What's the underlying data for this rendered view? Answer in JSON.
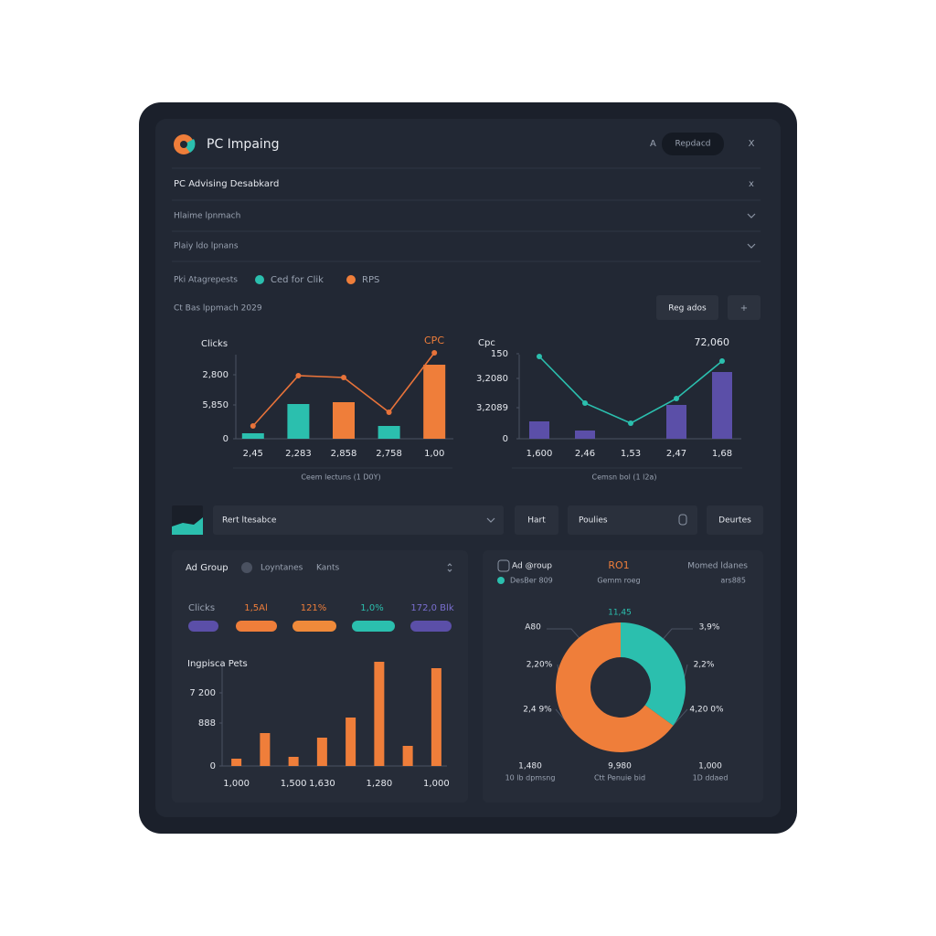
{
  "header": {
    "title": "PC Impaing",
    "user": "A",
    "button": "Repdacd",
    "close": "X"
  },
  "rows": [
    {
      "label": "PC Advising Desabkard",
      "icon": "x"
    },
    {
      "label": "Hlaime lpnmach"
    },
    {
      "label": "Plaiy ldo lpnans"
    }
  ],
  "filters": {
    "label": "Pki Atagrepests",
    "items": [
      "Ced for Clik",
      "RPS"
    ]
  },
  "range": "Ct  Bas lppmach 2029",
  "actions": [
    "Reg ados",
    "+"
  ],
  "toolbar": {
    "select": "Rert ltesabce",
    "buttons": [
      "Hart",
      "Poulies",
      "Deurtes"
    ]
  },
  "ad_group": {
    "title": "Ad Group",
    "tabs": [
      "Loyntanes",
      "Kants"
    ],
    "metric": "Clicks",
    "values": [
      "1,5Al",
      "121%",
      "1,0%",
      "172,0 Blk"
    ]
  },
  "chart_data": [
    {
      "type": "bar",
      "title": "Clicks",
      "annotation": "CPC",
      "x_label": "Ceem lectuns (1 D0Y)",
      "categories": [
        "2,45",
        "2,283",
        "2,858",
        "2,758",
        "1,00"
      ],
      "series": [
        {
          "type": "bar",
          "colors": [
            "#2bbfae",
            "#2bbfae",
            "#ef7e3a",
            "#2bbfae",
            "#ef7e3a"
          ],
          "values": [
            600,
            3800,
            4000,
            1400,
            8100
          ]
        },
        {
          "type": "line",
          "color": "#e8733a",
          "values": [
            1400,
            6900,
            6700,
            2900,
            9400
          ]
        }
      ],
      "ylim": [
        0,
        10000
      ],
      "yticks": [
        0,
        {
          "value": 3700,
          "label": "5,850"
        },
        {
          "value": 7000,
          "label": "2,800"
        }
      ]
    },
    {
      "type": "bar",
      "title": "Cpc",
      "annotation": "72,060",
      "x_label": "Cemsn bol (1 l2a)",
      "categories": [
        "1,600",
        "2,46",
        "1,53",
        "2,47",
        "1,68"
      ],
      "series": [
        {
          "type": "bar",
          "color": "#5b4fa8",
          "values": [
            19,
            9,
            null,
            37,
            73
          ]
        },
        {
          "type": "line",
          "color": "#2bbfae",
          "values": [
            90,
            39,
            17,
            44,
            85
          ]
        }
      ],
      "ylim": [
        0,
        100
      ],
      "yticks": [
        0,
        {
          "value": 34,
          "label": "3,2089"
        },
        {
          "value": 66,
          "label": "3,2080"
        },
        {
          "value": 93,
          "label": "150"
        }
      ]
    },
    {
      "type": "bar",
      "title": "Ingpisca Pets",
      "categories": [
        "1,000",
        null,
        "1,500",
        "1,630",
        null,
        "1,280",
        null,
        "1,000"
      ],
      "series": [
        {
          "type": "bar",
          "color": "#ef7e3a",
          "values": [
            8,
            36,
            10,
            31,
            53,
            114,
            22,
            107
          ]
        }
      ],
      "ylim": [
        0,
        120
      ],
      "yticks": [
        0,
        {
          "value": 47,
          "label": "888"
        },
        {
          "value": 80,
          "label": "7 200"
        }
      ]
    },
    {
      "type": "pie",
      "title": "Ad @roup",
      "headers": [
        "RO1",
        "Momed ldanes"
      ],
      "subheaders": [
        "DesBer 809",
        "Gemm roeg",
        "ars885"
      ],
      "values": [
        35,
        65
      ],
      "colors": [
        "#2bbfae",
        "#ef7e3a"
      ],
      "annotations": [
        "11,45",
        "A80",
        "3,9%",
        "2,20%",
        "2,2%",
        "2,4 9%",
        "4,20 0%"
      ],
      "footer": [
        [
          "1,480",
          "10 lb dpmsng"
        ],
        [
          "9,980",
          "Ctt Penuie bid"
        ],
        [
          "1,000",
          "1D ddaed"
        ]
      ]
    }
  ]
}
